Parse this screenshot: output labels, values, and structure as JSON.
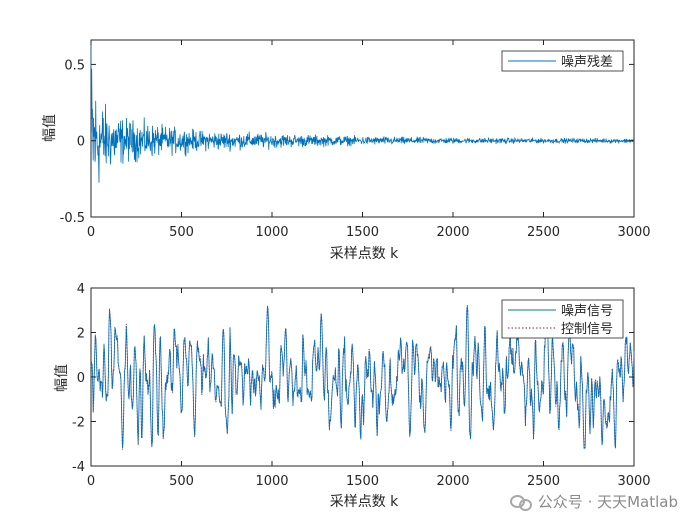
{
  "chart_data": [
    {
      "type": "line",
      "title": "",
      "xlabel": "采样点数 k",
      "ylabel": "幅值",
      "xlim": [
        0,
        3000
      ],
      "ylim": [
        -0.5,
        0.66
      ],
      "xticks": [
        0,
        500,
        1000,
        1500,
        2000,
        2500,
        3000
      ],
      "yticks": [
        -0.5,
        0,
        0.5
      ],
      "xtick_labels": [
        "0",
        "500",
        "1000",
        "1500",
        "2000",
        "2500",
        "3000"
      ],
      "ytick_labels": [
        "-0.5",
        "0",
        "0.5"
      ],
      "legend_position": "top-right",
      "series": [
        {
          "name": "噪声残差",
          "color": "#0072BD",
          "style": "solid",
          "description": "decaying residual noise, ~±0.45 initially, ~±0.02 after k=1500",
          "envelope_points": [
            [
              0,
              0.66
            ],
            [
              20,
              0.45
            ],
            [
              50,
              0.3
            ],
            [
              100,
              0.2
            ],
            [
              200,
              0.15
            ],
            [
              400,
              0.1
            ],
            [
              600,
              0.07
            ],
            [
              800,
              0.06
            ],
            [
              1000,
              0.05
            ],
            [
              1500,
              0.03
            ],
            [
              2000,
              0.02
            ],
            [
              3000,
              0.015
            ]
          ]
        }
      ]
    },
    {
      "type": "line",
      "title": "",
      "xlabel": "采样点数 k",
      "ylabel": "幅值",
      "xlim": [
        0,
        3000
      ],
      "ylim": [
        -4,
        4
      ],
      "xticks": [
        0,
        500,
        1000,
        1500,
        2000,
        2500,
        3000
      ],
      "yticks": [
        -4,
        -2,
        0,
        2,
        4
      ],
      "xtick_labels": [
        "0",
        "500",
        "1000",
        "1500",
        "2000",
        "2500",
        "3000"
      ],
      "ytick_labels": [
        "-4",
        "-2",
        "0",
        "2",
        "4"
      ],
      "legend_position": "top-right",
      "series": [
        {
          "name": "噪声信号",
          "color": "#0072BD",
          "style": "solid",
          "description": "oscillating noise signal roughly between -3 and 3"
        },
        {
          "name": "控制信号",
          "color": "#A2142F",
          "style": "dotted",
          "description": "control signal closely tracking the noise signal"
        }
      ]
    }
  ],
  "watermark": {
    "text": "公众号 · 天天Matlab",
    "icon": "wechat-icon"
  }
}
